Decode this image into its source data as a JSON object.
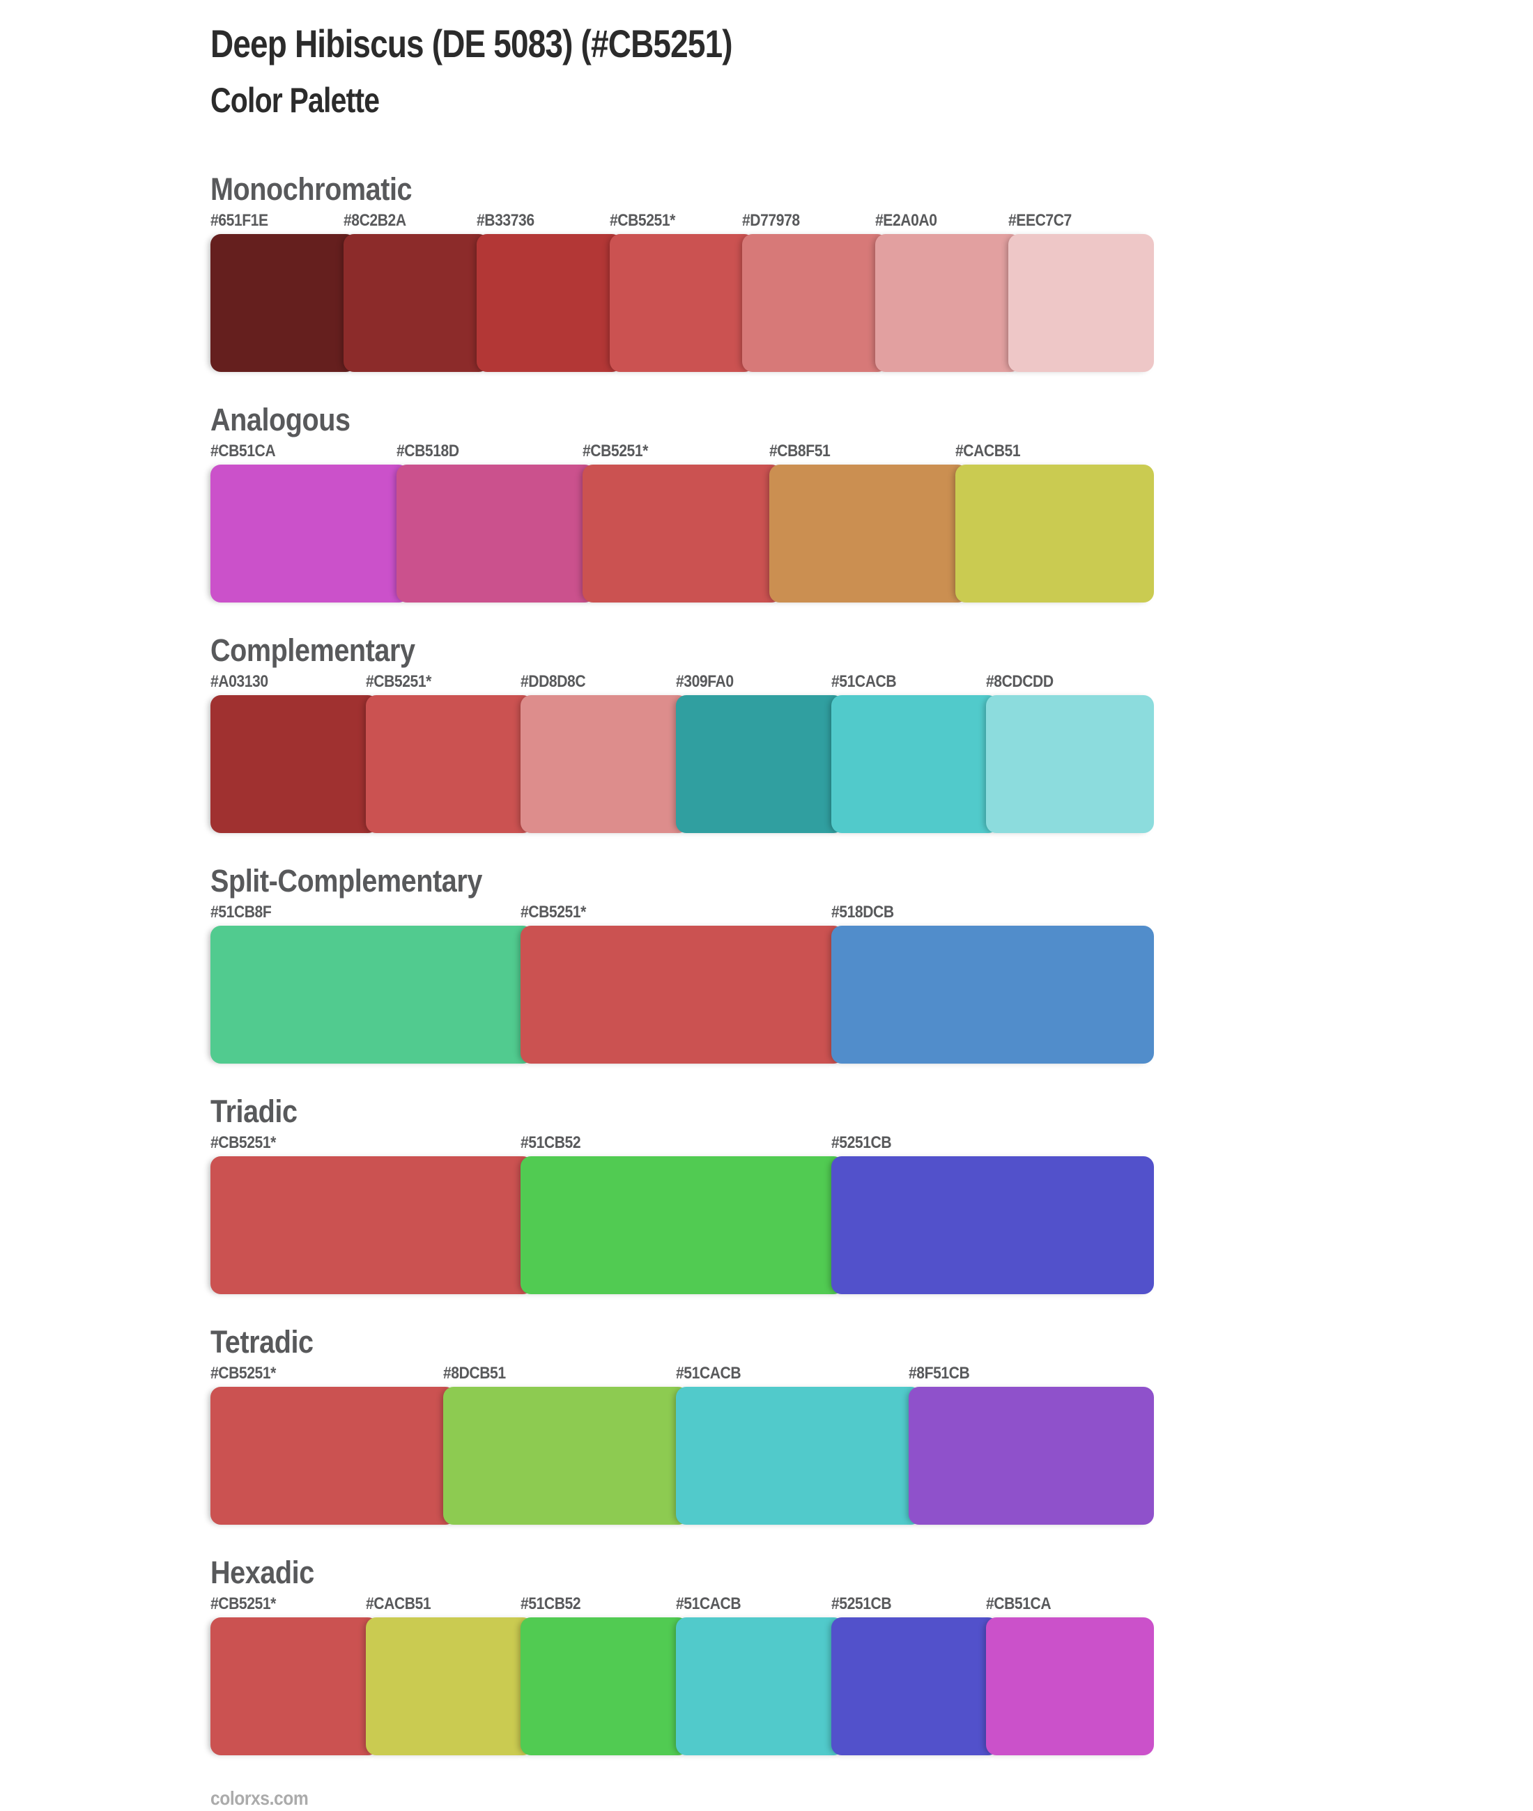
{
  "header": {
    "title": "Deep Hibiscus (DE 5083) (#CB5251)",
    "subtitle": "Color Palette"
  },
  "base_color": "#CB5251",
  "base_color_marker": "*",
  "sections": [
    {
      "name": "Monochromatic",
      "swatches": [
        {
          "label": "#651F1E",
          "hex": "#651F1E"
        },
        {
          "label": "#8C2B2A",
          "hex": "#8C2B2A"
        },
        {
          "label": "#B33736",
          "hex": "#B33736"
        },
        {
          "label": "#CB5251*",
          "hex": "#CB5251"
        },
        {
          "label": "#D77978",
          "hex": "#D77978"
        },
        {
          "label": "#E2A0A0",
          "hex": "#E2A0A0"
        },
        {
          "label": "#EEC7C7",
          "hex": "#EEC7C7"
        }
      ]
    },
    {
      "name": "Analogous",
      "swatches": [
        {
          "label": "#CB51CA",
          "hex": "#CB51CA"
        },
        {
          "label": "#CB518D",
          "hex": "#CB518D"
        },
        {
          "label": "#CB5251*",
          "hex": "#CB5251"
        },
        {
          "label": "#CB8F51",
          "hex": "#CB8F51"
        },
        {
          "label": "#CACB51",
          "hex": "#CACB51"
        }
      ]
    },
    {
      "name": "Complementary",
      "swatches": [
        {
          "label": "#A03130",
          "hex": "#A03130"
        },
        {
          "label": "#CB5251*",
          "hex": "#CB5251"
        },
        {
          "label": "#DD8D8C",
          "hex": "#DD8D8C"
        },
        {
          "label": "#309FA0",
          "hex": "#309FA0"
        },
        {
          "label": "#51CACB",
          "hex": "#51CACB"
        },
        {
          "label": "#8CDCDD",
          "hex": "#8CDCDD"
        }
      ]
    },
    {
      "name": "Split-Complementary",
      "swatches": [
        {
          "label": "#51CB8F",
          "hex": "#51CB8F"
        },
        {
          "label": "#CB5251*",
          "hex": "#CB5251"
        },
        {
          "label": "#518DCB",
          "hex": "#518DCB"
        }
      ]
    },
    {
      "name": "Triadic",
      "swatches": [
        {
          "label": "#CB5251*",
          "hex": "#CB5251"
        },
        {
          "label": "#51CB52",
          "hex": "#51CB52"
        },
        {
          "label": "#5251CB",
          "hex": "#5251CB"
        }
      ]
    },
    {
      "name": "Tetradic",
      "swatches": [
        {
          "label": "#CB5251*",
          "hex": "#CB5251"
        },
        {
          "label": "#8DCB51",
          "hex": "#8DCB51"
        },
        {
          "label": "#51CACB",
          "hex": "#51CACB"
        },
        {
          "label": "#8F51CB",
          "hex": "#8F51CB"
        }
      ]
    },
    {
      "name": "Hexadic",
      "swatches": [
        {
          "label": "#CB5251*",
          "hex": "#CB5251"
        },
        {
          "label": "#CACB51",
          "hex": "#CACB51"
        },
        {
          "label": "#51CB52",
          "hex": "#51CB52"
        },
        {
          "label": "#51CACB",
          "hex": "#51CACB"
        },
        {
          "label": "#5251CB",
          "hex": "#5251CB"
        },
        {
          "label": "#CB51CA",
          "hex": "#CB51CA"
        }
      ]
    }
  ],
  "footer": {
    "site": "colorxs.com"
  },
  "theme": {
    "background": "#FFFFFF",
    "title_color": "#2B2B2B",
    "heading_color": "#58595B",
    "label_color": "#58595B",
    "footer_color": "#ABABAB"
  }
}
